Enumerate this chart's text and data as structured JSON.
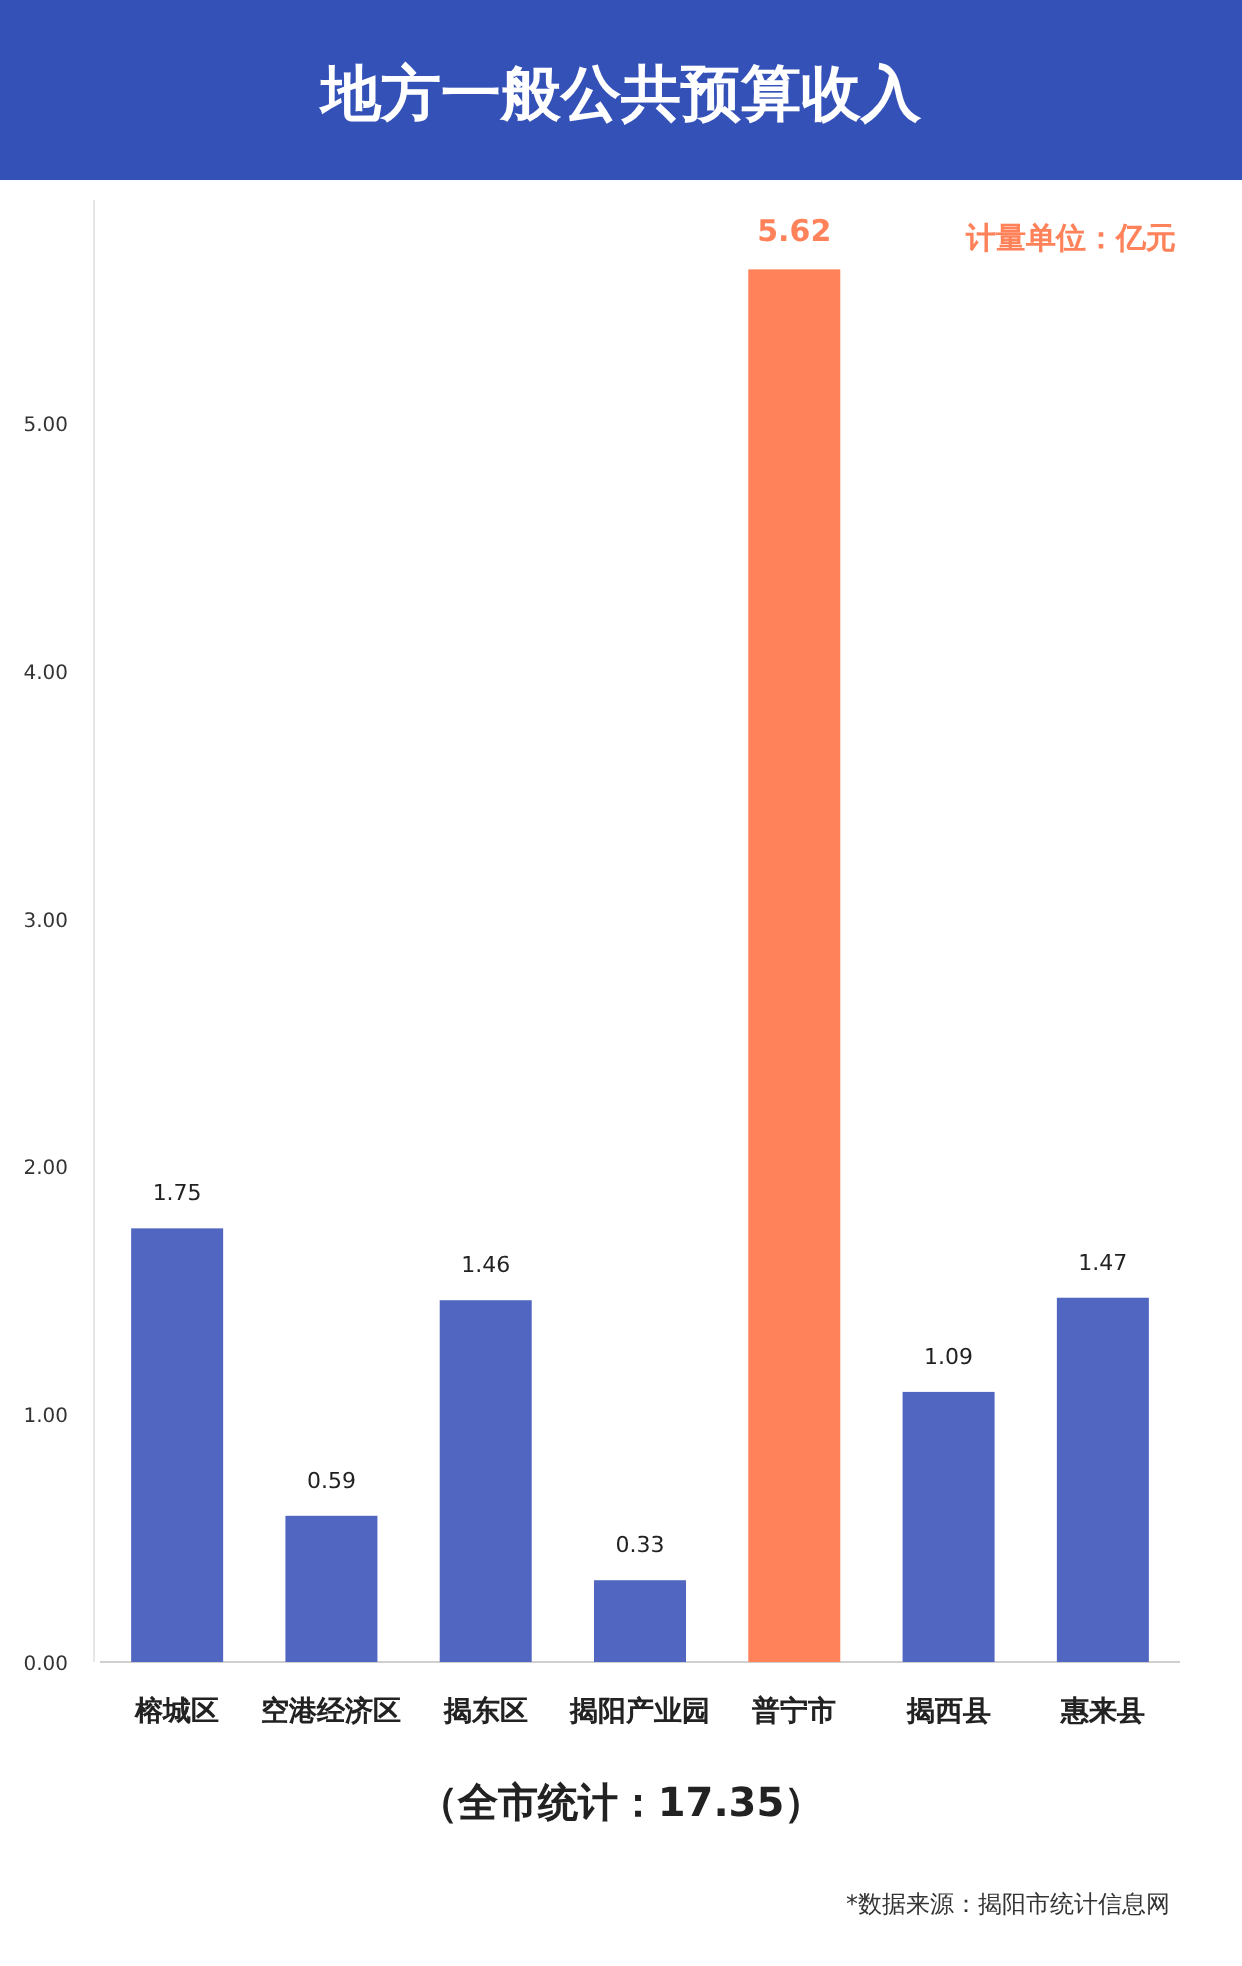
{
  "chart_data": {
    "type": "bar",
    "title": "地方一般公共预算收入",
    "categories": [
      "榕城区",
      "空港经济区",
      "揭东区",
      "揭阳产业园",
      "普宁市",
      "揭西县",
      "惠来县"
    ],
    "values": [
      1.75,
      0.59,
      1.46,
      0.33,
      5.62,
      1.09,
      1.47
    ],
    "colors": [
      "#5066c0",
      "#5066c0",
      "#5066c0",
      "#5066c0",
      "#ff825a",
      "#5066c0",
      "#5066c0"
    ],
    "ylim": [
      0,
      5.9
    ],
    "yticks": [
      {
        "value": 0,
        "label": "0.00"
      },
      {
        "value": 1,
        "label": "1.00"
      },
      {
        "value": 2,
        "label": "2.00"
      },
      {
        "value": 3,
        "label": "3.00"
      },
      {
        "value": 4,
        "label": "4.00"
      },
      {
        "value": 5,
        "label": "5.00"
      }
    ],
    "data_labels": true,
    "annotations": [
      "计量单位：亿元",
      "（全市统计：17.35）",
      "*数据来源：揭阳市统计信息网"
    ]
  }
}
